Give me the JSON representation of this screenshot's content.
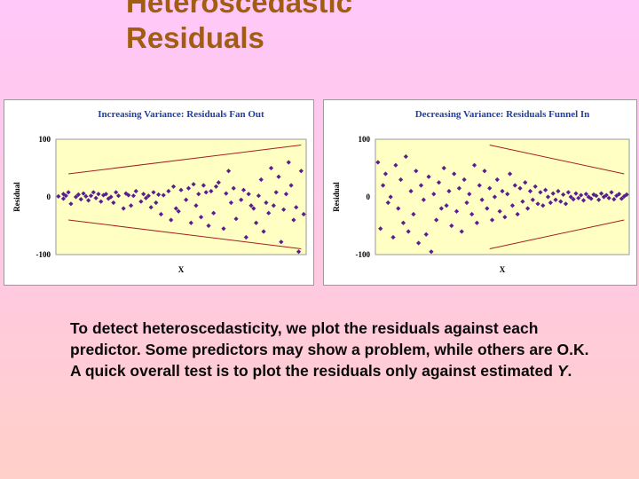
{
  "slide": {
    "title_line1": "Heteroscedastic",
    "title_line2": "Residuals",
    "body_text": "To detect heteroscedasticity, we plot the residuals against each predictor.  Some predictors may show a problem, while others are O.K.  A quick overall test is to plot the residuals only against estimated ",
    "body_text_italic": "Y",
    "body_text_end": "."
  },
  "colors": {
    "background_top": "#ffc8f8",
    "background_bottom": "#ffd0c8",
    "title": "#a25d10",
    "chart_title": "#1f3fa8",
    "plot_area": "#ffffc4",
    "marker": "#5a1f8f",
    "envelope": "#a52020"
  },
  "chart_data": [
    {
      "type": "scatter",
      "title": "Increasing Variance: Residuals Fan Out",
      "xlabel": "X",
      "ylabel": "Residual",
      "yticks": [
        "100",
        "0",
        "-100"
      ],
      "ylim": [
        -100,
        100
      ],
      "xlim": [
        0,
        100
      ],
      "grid": false,
      "marker": "diamond",
      "envelope": {
        "upper": [
          [
            5,
            40
          ],
          [
            98,
            90
          ]
        ],
        "lower": [
          [
            5,
            -40
          ],
          [
            98,
            -90
          ]
        ]
      },
      "points": [
        [
          1,
          1
        ],
        [
          3,
          5
        ],
        [
          3,
          -3
        ],
        [
          4,
          2
        ],
        [
          5,
          8
        ],
        [
          6,
          -12
        ],
        [
          8,
          0
        ],
        [
          9,
          4
        ],
        [
          10,
          -4
        ],
        [
          11,
          6
        ],
        [
          12,
          1
        ],
        [
          13,
          -6
        ],
        [
          14,
          2
        ],
        [
          15,
          8
        ],
        [
          16,
          -2
        ],
        [
          17,
          5
        ],
        [
          18,
          -8
        ],
        [
          19,
          3
        ],
        [
          20,
          5
        ],
        [
          21,
          -3
        ],
        [
          22,
          0
        ],
        [
          23,
          -10
        ],
        [
          24,
          8
        ],
        [
          25,
          2
        ],
        [
          27,
          -20
        ],
        [
          28,
          6
        ],
        [
          29,
          3
        ],
        [
          30,
          -15
        ],
        [
          31,
          2
        ],
        [
          32,
          10
        ],
        [
          34,
          -8
        ],
        [
          35,
          5
        ],
        [
          36,
          -2
        ],
        [
          37,
          2
        ],
        [
          38,
          -18
        ],
        [
          39,
          8
        ],
        [
          40,
          -10
        ],
        [
          41,
          4
        ],
        [
          42,
          -30
        ],
        [
          43,
          3
        ],
        [
          45,
          10
        ],
        [
          46,
          -40
        ],
        [
          47,
          18
        ],
        [
          48,
          -20
        ],
        [
          49,
          -25
        ],
        [
          50,
          12
        ],
        [
          52,
          -5
        ],
        [
          53,
          15
        ],
        [
          54,
          -45
        ],
        [
          55,
          22
        ],
        [
          56,
          -15
        ],
        [
          57,
          5
        ],
        [
          58,
          -35
        ],
        [
          59,
          20
        ],
        [
          60,
          8
        ],
        [
          61,
          -50
        ],
        [
          62,
          10
        ],
        [
          63,
          -28
        ],
        [
          64,
          18
        ],
        [
          65,
          25
        ],
        [
          67,
          -55
        ],
        [
          68,
          6
        ],
        [
          69,
          45
        ],
        [
          70,
          -10
        ],
        [
          71,
          15
        ],
        [
          72,
          -38
        ],
        [
          74,
          -5
        ],
        [
          75,
          12
        ],
        [
          76,
          -70
        ],
        [
          77,
          5
        ],
        [
          78,
          -15
        ],
        [
          79,
          -20
        ],
        [
          80,
          -45
        ],
        [
          81,
          2
        ],
        [
          82,
          30
        ],
        [
          83,
          -60
        ],
        [
          84,
          -10
        ],
        [
          85,
          -28
        ],
        [
          86,
          50
        ],
        [
          87,
          -15
        ],
        [
          88,
          8
        ],
        [
          89,
          35
        ],
        [
          90,
          -78
        ],
        [
          91,
          -22
        ],
        [
          92,
          5
        ],
        [
          93,
          60
        ],
        [
          94,
          20
        ],
        [
          95,
          -40
        ],
        [
          96,
          -18
        ],
        [
          97,
          -95
        ],
        [
          98,
          45
        ],
        [
          99,
          -30
        ]
      ]
    },
    {
      "type": "scatter",
      "title": "Decreasing Variance: Residuals Funnel In",
      "xlabel": "X",
      "ylabel": "Residual",
      "yticks": [
        "100",
        "0",
        "-100"
      ],
      "ylim": [
        -100,
        100
      ],
      "xlim": [
        0,
        100
      ],
      "grid": false,
      "marker": "diamond",
      "envelope": {
        "upper": [
          [
            45,
            90
          ],
          [
            98,
            40
          ]
        ],
        "lower": [
          [
            45,
            -90
          ],
          [
            98,
            -40
          ]
        ]
      },
      "points": [
        [
          1,
          60
        ],
        [
          2,
          -55
        ],
        [
          3,
          20
        ],
        [
          4,
          40
        ],
        [
          5,
          -10
        ],
        [
          6,
          0
        ],
        [
          7,
          -70
        ],
        [
          8,
          55
        ],
        [
          9,
          -20
        ],
        [
          10,
          30
        ],
        [
          11,
          -45
        ],
        [
          12,
          70
        ],
        [
          13,
          -60
        ],
        [
          14,
          10
        ],
        [
          15,
          -30
        ],
        [
          16,
          45
        ],
        [
          17,
          -80
        ],
        [
          18,
          20
        ],
        [
          19,
          -5
        ],
        [
          20,
          -65
        ],
        [
          21,
          35
        ],
        [
          22,
          -95
        ],
        [
          23,
          5
        ],
        [
          24,
          -40
        ],
        [
          25,
          25
        ],
        [
          26,
          -20
        ],
        [
          27,
          50
        ],
        [
          28,
          -15
        ],
        [
          29,
          10
        ],
        [
          30,
          -50
        ],
        [
          31,
          40
        ],
        [
          32,
          -25
        ],
        [
          33,
          15
        ],
        [
          34,
          -60
        ],
        [
          35,
          30
        ],
        [
          36,
          -10
        ],
        [
          37,
          5
        ],
        [
          38,
          -30
        ],
        [
          39,
          55
        ],
        [
          40,
          -45
        ],
        [
          41,
          20
        ],
        [
          42,
          -5
        ],
        [
          43,
          45
        ],
        [
          44,
          -20
        ],
        [
          45,
          15
        ],
        [
          46,
          -40
        ],
        [
          47,
          0
        ],
        [
          48,
          30
        ],
        [
          49,
          -25
        ],
        [
          50,
          10
        ],
        [
          51,
          -35
        ],
        [
          52,
          5
        ],
        [
          53,
          40
        ],
        [
          54,
          -15
        ],
        [
          55,
          20
        ],
        [
          56,
          -30
        ],
        [
          57,
          15
        ],
        [
          58,
          -8
        ],
        [
          59,
          25
        ],
        [
          60,
          -20
        ],
        [
          61,
          10
        ],
        [
          62,
          -5
        ],
        [
          63,
          18
        ],
        [
          64,
          -12
        ],
        [
          65,
          8
        ],
        [
          66,
          -15
        ],
        [
          67,
          12
        ],
        [
          68,
          0
        ],
        [
          69,
          -10
        ],
        [
          70,
          6
        ],
        [
          71,
          -5
        ],
        [
          72,
          10
        ],
        [
          73,
          -8
        ],
        [
          74,
          4
        ],
        [
          75,
          -12
        ],
        [
          76,
          8
        ],
        [
          77,
          0
        ],
        [
          78,
          -4
        ],
        [
          79,
          6
        ],
        [
          80,
          -2
        ],
        [
          81,
          3
        ],
        [
          82,
          -6
        ],
        [
          83,
          5
        ],
        [
          84,
          0
        ],
        [
          85,
          -3
        ],
        [
          86,
          4
        ],
        [
          87,
          2
        ],
        [
          88,
          -5
        ],
        [
          89,
          6
        ],
        [
          90,
          0
        ],
        [
          91,
          3
        ],
        [
          92,
          -2
        ],
        [
          93,
          8
        ],
        [
          94,
          -4
        ],
        [
          95,
          2
        ],
        [
          96,
          5
        ],
        [
          97,
          -3
        ],
        [
          98,
          1
        ],
        [
          99,
          4
        ]
      ]
    }
  ]
}
